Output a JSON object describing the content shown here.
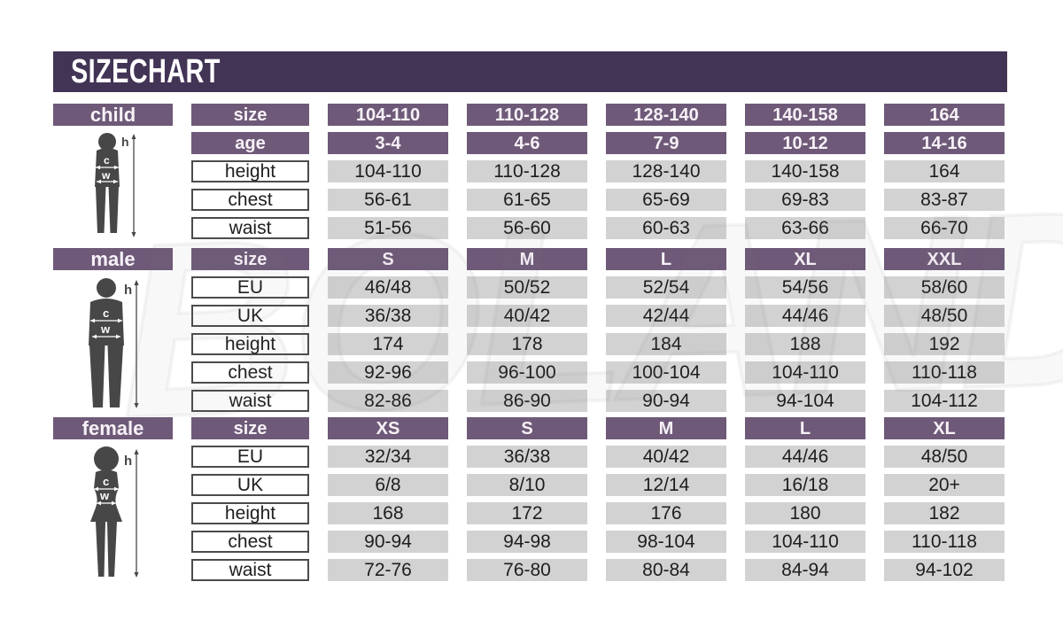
{
  "title": "SIZE CHART",
  "watermark": "BOLAND",
  "colors": {
    "title_banner": "#423455",
    "purple_cells": "#6E5A78",
    "gray_cells": "#D2D2D2",
    "cell_border": "#4B4B4B",
    "silhouette": "#474747"
  },
  "figure_annotations": {
    "height": "h",
    "chest": "c",
    "waist": "w"
  },
  "sections": [
    {
      "id": "child",
      "label": "child",
      "figure_icon": "child-silhouette",
      "rows": [
        {
          "label": "size",
          "style": "purple",
          "cells": [
            "104-110",
            "110-128",
            "128-140",
            "140-158",
            "164"
          ]
        },
        {
          "label": "age",
          "style": "purple",
          "cells": [
            "3-4",
            "4-6",
            "7-9",
            "10-12",
            "14-16"
          ]
        },
        {
          "label": "height",
          "style": "plain",
          "cells": [
            "104-110",
            "110-128",
            "128-140",
            "140-158",
            "164"
          ]
        },
        {
          "label": "chest",
          "style": "plain",
          "cells": [
            "56-61",
            "61-65",
            "65-69",
            "69-83",
            "83-87"
          ]
        },
        {
          "label": "waist",
          "style": "plain",
          "cells": [
            "51-56",
            "56-60",
            "60-63",
            "63-66",
            "66-70"
          ]
        }
      ]
    },
    {
      "id": "male",
      "label": "male",
      "figure_icon": "male-silhouette",
      "rows": [
        {
          "label": "size",
          "style": "purple",
          "cells": [
            "S",
            "M",
            "L",
            "XL",
            "XXL"
          ]
        },
        {
          "label": "EU",
          "style": "plain",
          "cells": [
            "46/48",
            "50/52",
            "52/54",
            "54/56",
            "58/60"
          ]
        },
        {
          "label": "UK",
          "style": "plain",
          "cells": [
            "36/38",
            "40/42",
            "42/44",
            "44/46",
            "48/50"
          ]
        },
        {
          "label": "height",
          "style": "plain",
          "cells": [
            "174",
            "178",
            "184",
            "188",
            "192"
          ]
        },
        {
          "label": "chest",
          "style": "plain",
          "cells": [
            "92-96",
            "96-100",
            "100-104",
            "104-110",
            "110-118"
          ]
        },
        {
          "label": "waist",
          "style": "plain",
          "cells": [
            "82-86",
            "86-90",
            "90-94",
            "94-104",
            "104-112"
          ]
        }
      ]
    },
    {
      "id": "female",
      "label": "female",
      "figure_icon": "female-silhouette",
      "rows": [
        {
          "label": "size",
          "style": "purple",
          "cells": [
            "XS",
            "S",
            "M",
            "L",
            "XL"
          ]
        },
        {
          "label": "EU",
          "style": "plain",
          "cells": [
            "32/34",
            "36/38",
            "40/42",
            "44/46",
            "48/50"
          ]
        },
        {
          "label": "UK",
          "style": "plain",
          "cells": [
            "6/8",
            "8/10",
            "12/14",
            "16/18",
            "20+"
          ]
        },
        {
          "label": "height",
          "style": "plain",
          "cells": [
            "168",
            "172",
            "176",
            "180",
            "182"
          ]
        },
        {
          "label": "chest",
          "style": "plain",
          "cells": [
            "90-94",
            "94-98",
            "98-104",
            "104-110",
            "110-118"
          ]
        },
        {
          "label": "waist",
          "style": "plain",
          "cells": [
            "72-76",
            "76-80",
            "80-84",
            "84-94",
            "94-102"
          ]
        }
      ]
    }
  ],
  "chart_data": [
    {
      "type": "table",
      "title": "child",
      "column_headers_size": [
        "104-110",
        "110-128",
        "128-140",
        "140-158",
        "164"
      ],
      "rows": [
        {
          "label": "age",
          "values": [
            "3-4",
            "4-6",
            "7-9",
            "10-12",
            "14-16"
          ]
        },
        {
          "label": "height",
          "values": [
            "104-110",
            "110-128",
            "128-140",
            "140-158",
            "164"
          ]
        },
        {
          "label": "chest",
          "values": [
            "56-61",
            "61-65",
            "65-69",
            "69-83",
            "83-87"
          ]
        },
        {
          "label": "waist",
          "values": [
            "51-56",
            "56-60",
            "60-63",
            "63-66",
            "66-70"
          ]
        }
      ]
    },
    {
      "type": "table",
      "title": "male",
      "column_headers_size": [
        "S",
        "M",
        "L",
        "XL",
        "XXL"
      ],
      "rows": [
        {
          "label": "EU",
          "values": [
            "46/48",
            "50/52",
            "52/54",
            "54/56",
            "58/60"
          ]
        },
        {
          "label": "UK",
          "values": [
            "36/38",
            "40/42",
            "42/44",
            "44/46",
            "48/50"
          ]
        },
        {
          "label": "height",
          "values": [
            "174",
            "178",
            "184",
            "188",
            "192"
          ]
        },
        {
          "label": "chest",
          "values": [
            "92-96",
            "96-100",
            "100-104",
            "104-110",
            "110-118"
          ]
        },
        {
          "label": "waist",
          "values": [
            "82-86",
            "86-90",
            "90-94",
            "94-104",
            "104-112"
          ]
        }
      ]
    },
    {
      "type": "table",
      "title": "female",
      "column_headers_size": [
        "XS",
        "S",
        "M",
        "L",
        "XL"
      ],
      "rows": [
        {
          "label": "EU",
          "values": [
            "32/34",
            "36/38",
            "40/42",
            "44/46",
            "48/50"
          ]
        },
        {
          "label": "UK",
          "values": [
            "6/8",
            "8/10",
            "12/14",
            "16/18",
            "20+"
          ]
        },
        {
          "label": "height",
          "values": [
            "168",
            "172",
            "176",
            "180",
            "182"
          ]
        },
        {
          "label": "chest",
          "values": [
            "90-94",
            "94-98",
            "98-104",
            "104-110",
            "110-118"
          ]
        },
        {
          "label": "waist",
          "values": [
            "72-76",
            "76-80",
            "80-84",
            "84-94",
            "94-102"
          ]
        }
      ]
    }
  ]
}
